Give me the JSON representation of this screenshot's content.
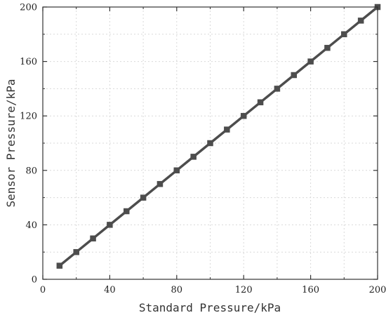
{
  "chart_data": {
    "type": "line",
    "title": "",
    "xlabel": "Standard Pressure/kPa",
    "ylabel": "Sensor Pressure/kPa",
    "xlim": [
      0,
      200
    ],
    "ylim": [
      0,
      200
    ],
    "xticks": [
      0,
      40,
      80,
      120,
      160,
      200
    ],
    "yticks": [
      0,
      40,
      80,
      120,
      160,
      200
    ],
    "grid": true,
    "series": [
      {
        "color": "#4d4d4d",
        "marker": "square",
        "x": [
          10,
          20,
          30,
          40,
          50,
          60,
          70,
          80,
          90,
          100,
          110,
          120,
          130,
          140,
          150,
          160,
          170,
          180,
          190,
          200
        ],
        "y": [
          10,
          20,
          30,
          40,
          50,
          60,
          70,
          80,
          90,
          100,
          110,
          120,
          130,
          140,
          150,
          160,
          170,
          180,
          190,
          200
        ]
      }
    ]
  }
}
